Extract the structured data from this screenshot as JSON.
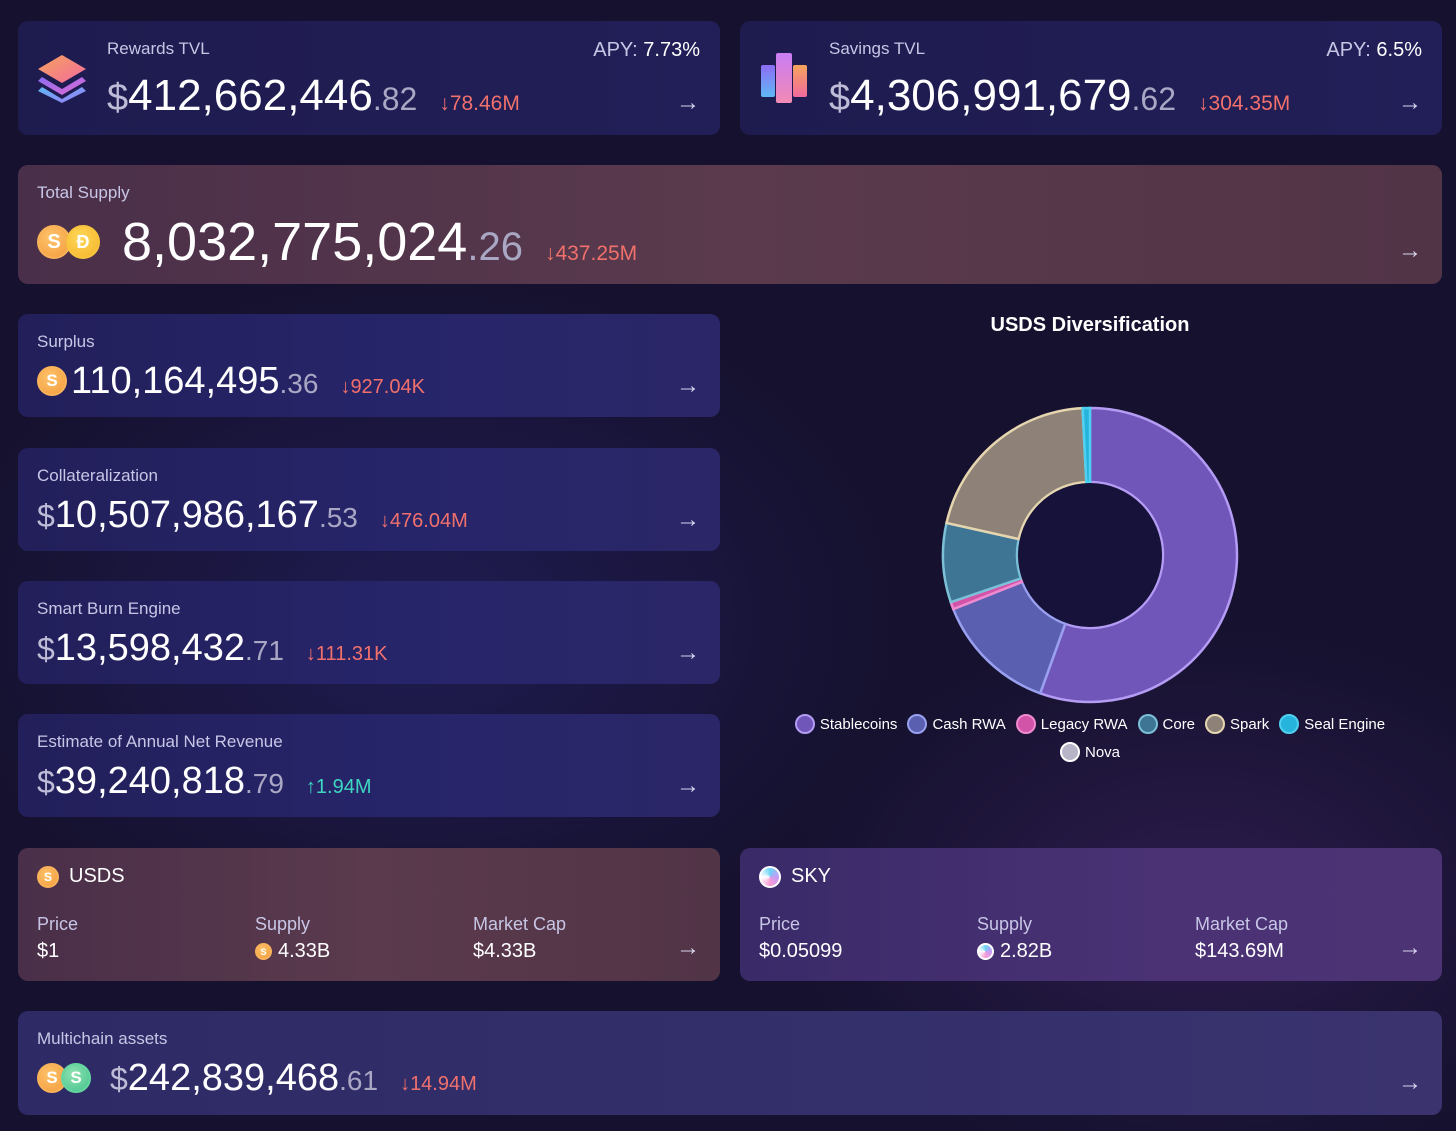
{
  "rewards": {
    "label": "Rewards TVL",
    "apy_label": "APY:",
    "apy": "7.73%",
    "currency": "$",
    "int": "412,662,446",
    "dec": ".82",
    "change": "↓78.46M"
  },
  "savings": {
    "label": "Savings TVL",
    "apy_label": "APY:",
    "apy": "6.5%",
    "currency": "$",
    "int": "4,306,991,679",
    "dec": ".62",
    "change": "↓304.35M"
  },
  "total_supply": {
    "label": "Total Supply",
    "int": "8,032,775,024",
    "dec": ".26",
    "change": "↓437.25M"
  },
  "surplus": {
    "label": "Surplus",
    "int": "110,164,495",
    "dec": ".36",
    "change": "↓927.04K"
  },
  "collateralization": {
    "label": "Collateralization",
    "currency": "$",
    "int": "10,507,986,167",
    "dec": ".53",
    "change": "↓476.04M"
  },
  "smart_burn": {
    "label": "Smart Burn Engine",
    "currency": "$",
    "int": "13,598,432",
    "dec": ".71",
    "change": "↓111.31K"
  },
  "revenue": {
    "label": "Estimate of Annual Net Revenue",
    "currency": "$",
    "int": "39,240,818",
    "dec": ".79",
    "change": "↑1.94M"
  },
  "usds": {
    "title": "USDS",
    "price_label": "Price",
    "price": "$1",
    "supply_label": "Supply",
    "supply": "4.33B",
    "mcap_label": "Market Cap",
    "mcap": "$4.33B"
  },
  "sky": {
    "title": "SKY",
    "price_label": "Price",
    "price": "$0.05099",
    "supply_label": "Supply",
    "supply": "2.82B",
    "mcap_label": "Market Cap",
    "mcap": "$143.69M"
  },
  "multichain": {
    "label": "Multichain assets",
    "currency": "$",
    "int": "242,839,468",
    "dec": ".61",
    "change": "↓14.94M"
  },
  "arrow": "→",
  "coin_glyphs": {
    "usds": "S",
    "dai": "Ð",
    "green": "S"
  },
  "icons": [
    "rewards-logo-icon",
    "savings-logo-icon",
    "usds-coin-icon",
    "dai-coin-icon",
    "sky-coin-icon",
    "arrow-right-icon"
  ],
  "chart_data": {
    "type": "pie",
    "title": "USDS Diversification",
    "donut": true,
    "legend_position": "bottom",
    "series": [
      {
        "name": "Stablecoins",
        "value": 55.5,
        "color": "#6f56b8",
        "stroke": "#b49cf5"
      },
      {
        "name": "Cash RWA",
        "value": 13.5,
        "color": "#5a5fb0",
        "stroke": "#9aa0f0"
      },
      {
        "name": "Legacy RWA",
        "value": 0.8,
        "color": "#d154a8",
        "stroke": "#f08ad0"
      },
      {
        "name": "Core",
        "value": 8.7,
        "color": "#3f7594",
        "stroke": "#7cc0d8"
      },
      {
        "name": "Spark",
        "value": 20.7,
        "color": "#8e8278",
        "stroke": "#e6d6b0"
      },
      {
        "name": "Seal Engine",
        "value": 0.8,
        "color": "#27b4dc",
        "stroke": "#4fd0f0"
      },
      {
        "name": "Nova",
        "value": 0.0,
        "color": "#b8b4c8",
        "stroke": "#ffffff"
      }
    ]
  }
}
